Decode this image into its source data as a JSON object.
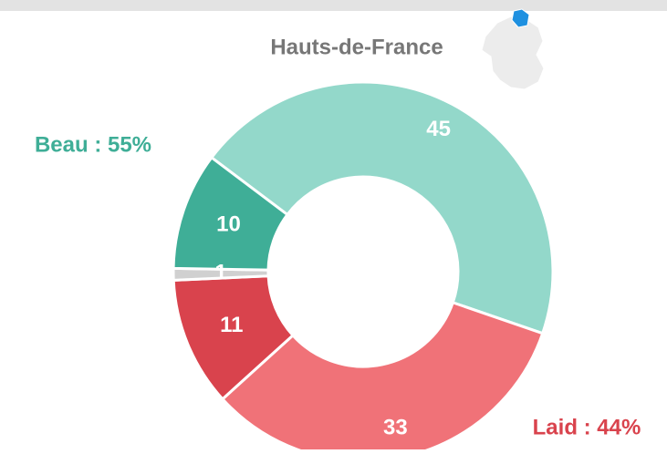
{
  "chart_data": {
    "type": "donut",
    "title": "Hauts-de-France",
    "categories": [
      "45",
      "33",
      "11",
      "1",
      "10"
    ],
    "values": [
      45,
      33,
      11,
      1,
      10
    ],
    "colors": [
      "#93d8ca",
      "#f07278",
      "#d9434d",
      "#d0d0d0",
      "#3fae97"
    ],
    "annotations": [
      {
        "text": "Beau : 55%",
        "color": "#3fae97"
      },
      {
        "text": "Laid : 44%",
        "color": "#d9434d"
      }
    ]
  }
}
